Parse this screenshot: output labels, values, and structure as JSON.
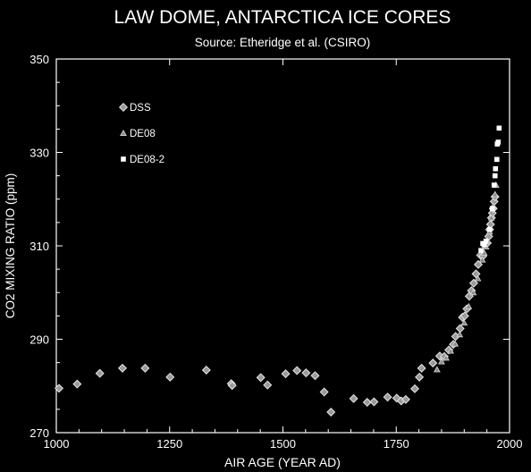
{
  "chart_data": {
    "type": "scatter",
    "title": "LAW DOME, ANTARCTICA ICE CORES",
    "subtitle": "Source:  Etheridge et al. (CSIRO)",
    "xlabel": "AIR AGE  (YEAR AD)",
    "ylabel": "CO2 MIXING RATIO  (ppm)",
    "xlim": [
      1000,
      2000
    ],
    "ylim": [
      270,
      350
    ],
    "x_ticks": [
      1000,
      1250,
      1500,
      1750,
      2000
    ],
    "y_ticks": [
      270,
      290,
      310,
      330,
      350
    ],
    "legend_position": "top-left",
    "colors": {
      "background": "#000000",
      "foreground": "#ffffff"
    },
    "series": [
      {
        "name": "DSS",
        "marker": "diamond",
        "x": [
          1006,
          1046,
          1096,
          1146,
          1196,
          1251,
          1331,
          1386,
          1388,
          1451,
          1466,
          1506,
          1531,
          1551,
          1571,
          1591,
          1606,
          1656,
          1686,
          1701,
          1731,
          1751,
          1761,
          1771,
          1791,
          1801,
          1806,
          1831,
          1846,
          1856,
          1866,
          1876,
          1881,
          1891,
          1896,
          1901,
          1906,
          1911,
          1916,
          1921,
          1926,
          1931,
          1936,
          1941,
          1946,
          1951,
          1954,
          1956,
          1958,
          1960,
          1962,
          1964,
          1966,
          1968
        ],
        "y": [
          279.5,
          280.4,
          282.7,
          283.8,
          283.8,
          281.9,
          283.4,
          280.5,
          280.1,
          281.8,
          280.2,
          282.6,
          283.3,
          282.8,
          282.2,
          278.7,
          274.4,
          277.3,
          276.5,
          276.6,
          277.6,
          277.4,
          276.8,
          277.1,
          279.4,
          281.9,
          283.8,
          284.9,
          286.4,
          286.3,
          287.7,
          288.9,
          290.6,
          292.3,
          294.7,
          295.0,
          296.5,
          299.2,
          300.4,
          302.0,
          304.0,
          306.0,
          308.0,
          307.8,
          310.3,
          310.6,
          312.0,
          313.5,
          314.6,
          316.0,
          317.0,
          318.0,
          319.5,
          320.5
        ]
      },
      {
        "name": "DE08",
        "marker": "triangle",
        "x": [
          1840,
          1850,
          1860,
          1870,
          1880,
          1890,
          1900,
          1910,
          1920,
          1930,
          1940,
          1944,
          1948,
          1952,
          1956,
          1960,
          1964,
          1968,
          1970
        ],
        "y": [
          283.5,
          285.2,
          286.0,
          287.5,
          289.0,
          291.0,
          293.5,
          297.0,
          300.0,
          303.0,
          307.0,
          308.5,
          309.8,
          311.0,
          313.0,
          316.0,
          318.5,
          321.0,
          323.0
        ]
      },
      {
        "name": "DE08-2",
        "marker": "square",
        "x": [
          1937,
          1941,
          1944,
          1948,
          1956,
          1962,
          1966,
          1968,
          1969,
          1972,
          1973,
          1975,
          1977
        ],
        "y": [
          309.0,
          310.5,
          310.2,
          311.0,
          313.5,
          318.0,
          323.0,
          325.0,
          326.5,
          328.5,
          331.8,
          332.2,
          335.2
        ]
      }
    ]
  }
}
